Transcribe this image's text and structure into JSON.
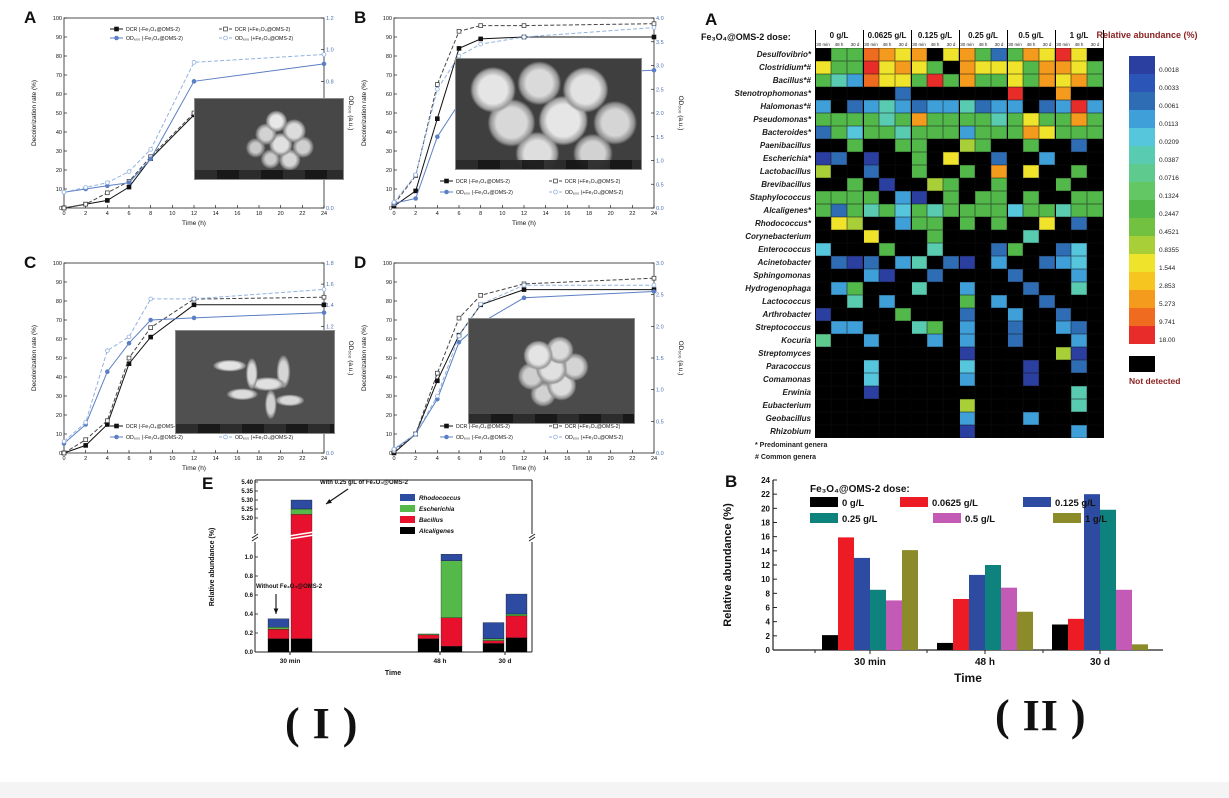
{
  "figure_labels": {
    "left": "( I )",
    "right": "( II )"
  },
  "sem_insets": {
    "a": "SEM micrograph: cluster of small spherical cells",
    "b": "SEM micrograph: large spherical particles",
    "c": "SEM micrograph: rod-shaped cells",
    "d": "SEM micrograph: irregular cell clump"
  },
  "chart_data": [
    {
      "id": "I-A",
      "type": "line",
      "panel_label": "A",
      "xlabel": "Time (h)",
      "x": [
        0,
        2,
        4,
        6,
        8,
        12,
        24
      ],
      "xticks": [
        0,
        2,
        4,
        6,
        8,
        10,
        12,
        14,
        16,
        18,
        20,
        22,
        24
      ],
      "left_axis": {
        "label": "Decolorization rate (%)",
        "min": 0,
        "max": 100,
        "step": 10
      },
      "right_axis": {
        "label": "OD₆₀₀ (a.u.)",
        "min": 0,
        "max": 1.2,
        "step": 0.2,
        "decimals": 1
      },
      "legend_pos": "top",
      "series": [
        {
          "name": "DCR (-Fe₃O₄@OMS-2)",
          "axis": "left",
          "dash": false,
          "marker": "square",
          "open": false,
          "color": "#111111",
          "values": [
            0,
            2,
            4,
            11,
            26,
            49,
            51
          ]
        },
        {
          "name": "DCR (+Fe₃O₄@OMS-2)",
          "axis": "left",
          "dash": true,
          "marker": "square",
          "open": true,
          "color": "#444444",
          "values": [
            0,
            2,
            8,
            14,
            27,
            50,
            52
          ]
        },
        {
          "name": "OD₆₀₀ (-Fe₃O₄@OMS-2)",
          "axis": "right",
          "dash": false,
          "marker": "circle",
          "open": false,
          "color": "#5b7fc4",
          "values": [
            0.1,
            0.12,
            0.14,
            0.16,
            0.31,
            0.8,
            0.91
          ]
        },
        {
          "name": "OD₆₀₀ (+Fe₃O₄@OMS-2)",
          "axis": "right",
          "dash": true,
          "marker": "circle",
          "open": true,
          "color": "#93b2e0",
          "values": [
            0.1,
            0.13,
            0.16,
            0.23,
            0.37,
            0.92,
            0.97
          ]
        }
      ]
    },
    {
      "id": "I-B",
      "type": "line",
      "panel_label": "B",
      "xlabel": "Time (h)",
      "x": [
        0,
        2,
        4,
        6,
        8,
        12,
        24
      ],
      "xticks": [
        0,
        2,
        4,
        6,
        8,
        10,
        12,
        14,
        16,
        18,
        20,
        22,
        24
      ],
      "left_axis": {
        "label": "Decolorization rate (%)",
        "min": 0,
        "max": 100,
        "step": 10
      },
      "right_axis": {
        "label": "OD₆₀₀ (a.u.)",
        "min": 0,
        "max": 4.0,
        "step": 0.5,
        "decimals": 1
      },
      "legend_pos": "bottom",
      "series": [
        {
          "name": "DCR (-Fe₃O₄@OMS-2)",
          "axis": "left",
          "dash": false,
          "marker": "square",
          "open": false,
          "color": "#111111",
          "values": [
            1,
            9,
            47,
            84,
            89,
            90,
            90
          ]
        },
        {
          "name": "DCR (+Fe₃O₄@OMS-2)",
          "axis": "left",
          "dash": true,
          "marker": "square",
          "open": true,
          "color": "#444444",
          "values": [
            2,
            17,
            65,
            93,
            96,
            96,
            97
          ]
        },
        {
          "name": "OD₆₀₀ (-Fe₃O₄@OMS-2)",
          "axis": "right",
          "dash": false,
          "marker": "circle",
          "open": false,
          "color": "#5b7fc4",
          "values": [
            0.1,
            0.2,
            1.5,
            2.2,
            2.7,
            2.8,
            2.9
          ]
        },
        {
          "name": "OD₆₀₀ (+Fe₃O₄@OMS-2)",
          "axis": "right",
          "dash": true,
          "marker": "circle",
          "open": true,
          "color": "#93b2e0",
          "values": [
            0.12,
            0.7,
            2.5,
            3.2,
            3.45,
            3.6,
            3.8
          ]
        }
      ]
    },
    {
      "id": "I-C",
      "type": "line",
      "panel_label": "C",
      "xlabel": "Time (h)",
      "x": [
        0,
        2,
        4,
        6,
        8,
        12,
        24
      ],
      "xticks": [
        0,
        2,
        4,
        6,
        8,
        10,
        12,
        14,
        16,
        18,
        20,
        22,
        24
      ],
      "left_axis": {
        "label": "Decolorization rate (%)",
        "min": 0,
        "max": 100,
        "step": 10
      },
      "right_axis": {
        "label": "OD₆₀₀ (a.u.)",
        "min": 0,
        "max": 1.8,
        "step": 0.2,
        "decimals": 1
      },
      "legend_pos": "bottom",
      "series": [
        {
          "name": "DCR (-Fe₃O₄@OMS-2)",
          "axis": "left",
          "dash": false,
          "marker": "square",
          "open": false,
          "color": "#111111",
          "values": [
            0,
            4,
            15,
            47,
            61,
            78,
            78
          ]
        },
        {
          "name": "DCR (+Fe₃O₄@OMS-2)",
          "axis": "left",
          "dash": true,
          "marker": "square",
          "open": true,
          "color": "#444444",
          "values": [
            0,
            7,
            17,
            50,
            66,
            81,
            82
          ]
        },
        {
          "name": "OD₆₀₀ (-Fe₃O₄@OMS-2)",
          "axis": "right",
          "dash": false,
          "marker": "circle",
          "open": false,
          "color": "#5b7fc4",
          "values": [
            0.09,
            0.27,
            0.77,
            1.04,
            1.26,
            1.28,
            1.33
          ]
        },
        {
          "name": "OD₆₀₀ (+Fe₃O₄@OMS-2)",
          "axis": "right",
          "dash": true,
          "marker": "circle",
          "open": true,
          "color": "#93b2e0",
          "values": [
            0.11,
            0.29,
            0.97,
            1.1,
            1.46,
            1.46,
            1.55
          ]
        }
      ]
    },
    {
      "id": "I-D",
      "type": "line",
      "panel_label": "D",
      "xlabel": "Time (h)",
      "x": [
        0,
        2,
        4,
        6,
        8,
        12,
        24
      ],
      "xticks": [
        0,
        2,
        4,
        6,
        8,
        10,
        12,
        14,
        16,
        18,
        20,
        22,
        24
      ],
      "left_axis": {
        "label": "Decolorization rate (%)",
        "min": 0,
        "max": 100,
        "step": 10
      },
      "right_axis": {
        "label": "OD₆₀₀ (a.u.)",
        "min": 0,
        "max": 3.0,
        "step": 0.5,
        "decimals": 1
      },
      "legend_pos": "bottom",
      "series": [
        {
          "name": "DCR (-Fe₃O₄@OMS-2)",
          "axis": "left",
          "dash": false,
          "marker": "square",
          "open": false,
          "color": "#111111",
          "values": [
            0,
            10,
            38,
            62,
            78,
            86,
            86
          ]
        },
        {
          "name": "DCR (+Fe₃O₄@OMS-2)",
          "axis": "left",
          "dash": true,
          "marker": "square",
          "open": true,
          "color": "#444444",
          "values": [
            1,
            10,
            42,
            71,
            83,
            89,
            92
          ]
        },
        {
          "name": "OD₆₀₀ (-Fe₃O₄@OMS-2)",
          "axis": "right",
          "dash": false,
          "marker": "circle",
          "open": false,
          "color": "#5b7fc4",
          "values": [
            0.06,
            0.3,
            0.85,
            1.75,
            2.05,
            2.45,
            2.55
          ]
        },
        {
          "name": "OD₆₀₀ (+Fe₃O₄@OMS-2)",
          "axis": "right",
          "dash": true,
          "marker": "circle",
          "open": true,
          "color": "#93b2e0",
          "values": [
            0.06,
            0.3,
            0.9,
            1.85,
            2.35,
            2.65,
            2.65
          ]
        }
      ]
    },
    {
      "id": "I-E",
      "type": "stacked-bar-broken-axis",
      "panel_label": "E",
      "ylabel": "Relative abundance (%)",
      "xlabel": "Time",
      "lower_ticks": [
        0.0,
        0.2,
        0.4,
        0.6,
        0.8,
        1.0
      ],
      "upper_ticks": [
        5.2,
        5.25,
        5.3,
        5.35,
        5.4
      ],
      "categories": [
        "30 min",
        "48 h",
        "30 d"
      ],
      "legend": [
        {
          "name": "Rhodococcus",
          "color": "#2d4ba0"
        },
        {
          "name": "Escherichia",
          "color": "#54b948"
        },
        {
          "name": "Bacillus",
          "color": "#e8112d"
        },
        {
          "name": "Alcaligenes",
          "color": "#000000"
        }
      ],
      "stack_order": [
        "Alcaligenes",
        "Bacillus",
        "Escherichia",
        "Rhodococcus"
      ],
      "stack_colors": [
        "#000000",
        "#e8112d",
        "#54b948",
        "#2d4ba0"
      ],
      "bars": [
        {
          "group": "30 min",
          "variant": "without",
          "segments": [
            0.14,
            0.1,
            0.02,
            0.09
          ]
        },
        {
          "group": "30 min",
          "variant": "with",
          "segments": [
            0.14,
            5.08,
            0.03,
            0.05
          ],
          "crosses_break": true
        },
        {
          "group": "48 h",
          "variant": "without",
          "segments": [
            0.14,
            0.04,
            0.01,
            0.0
          ]
        },
        {
          "group": "48 h",
          "variant": "with",
          "segments": [
            0.06,
            0.3,
            0.6,
            0.07
          ]
        },
        {
          "group": "30 d",
          "variant": "without",
          "segments": [
            0.09,
            0.03,
            0.02,
            0.17
          ]
        },
        {
          "group": "30 d",
          "variant": "with",
          "segments": [
            0.15,
            0.23,
            0.02,
            0.21
          ]
        }
      ],
      "annotations": {
        "with": "With 0.25 g/L of Fe₃O₄@OMS-2",
        "without": "Without Fe₃O₄@OMS-2"
      }
    },
    {
      "id": "II-A",
      "type": "heatmap",
      "panel_label": "A",
      "header": "Fe₃O₄@OMS-2 dose:",
      "dose_labels": [
        "0 g/L",
        "0.0625 g/L",
        "0.125 g/L",
        "0.25 g/L",
        "0.5 g/L",
        "1 g/L"
      ],
      "time_sublabels": [
        "30 min",
        "48 h",
        "30 d"
      ],
      "rows": [
        "Desulfovibrio*",
        "Clostridium*#",
        "Bacillus*#",
        "Stenotrophomonas*",
        "Halomonas*#",
        "Pseudomonas*",
        "Bacteroides*",
        "Paenibacillus",
        "Escherichia*",
        "Lactobacillus",
        "Brevibacillus",
        "Staphylococcus",
        "Alcaligenes*",
        "Rhodococcus*",
        "Corynebacterium",
        "Enterococcus",
        "Acinetobacter",
        "Sphingomonas",
        "Hydrogenophaga",
        "Lactococcus",
        "Arthrobacter",
        "Streptococcus",
        "Kocuria",
        "Streptomyces",
        "Paracoccus",
        "Comamonas",
        "Erwinia",
        "Eubacterium",
        "Geobacillus",
        "Rhizobium"
      ],
      "palette": {
        "K": "#000000",
        "B": "#2a3f9f",
        "b": "#2e6db4",
        "c": "#3f9fd8",
        "C": "#55c6dc",
        "t": "#58cbb0",
        "T": "#5fca8d",
        "G": "#63c863",
        "g": "#53b84a",
        "l": "#a9cf38",
        "y": "#efe32b",
        "Y": "#f6c51f",
        "o": "#f49b1d",
        "O": "#ee6b20",
        "r": "#e82c2a"
      },
      "grid": [
        "KggOoyoKyogbgoyryK",
        "yggryoygKoyyygooyg",
        "gtcOyygrgoggygoyog",
        "KKKKKbKKKKKKrKKoKK",
        "cKbctcbcctbccKbcrc",
        "ggggtgoggggtgyggog",
        "bgCggtgggcgggoyggg",
        "KKgKKggKKlgKKgKKbK",
        "BbKBKKgKyKKbKKcKKK",
        "lKKbKKgKKgKoKyKKgK",
        "KKgKBKKlgKKgKKKgKK",
        "ggggKcBKgKggKgKKgg",
        "gbgtgCgtggggCggtgg",
        "KylKKcggKgKgKKyKbK",
        "KKKyKKKgKKKKKtKKKK",
        "CKKKgKKtKKKbgKKbCK",
        "KbBbKctKbBKcKKbcCK",
        "KKKcBKKbKKKKbKKKcK",
        "KcgKKKtKKcKKKbKKtK",
        "KKtKcKKKKgKcKKbKKK",
        "BKKKKgKKKbKKcKKbKK",
        "KccKKKtgKcKKbKKcbK",
        "TKKcKKKcKcKKbKKKcK",
        "KKKKKKKKKBKKKKKlBK",
        "KKKCKKKKKCKKKBKKbK",
        "KKKCKKKKKcKKKBKKKK",
        "KKKBKKKKKKKKKKKKtK",
        "KKKKKKKKKlKKKKKKtK",
        "KKKKKKKKKcKKKcKKKK",
        "KKKKKKKKKBKKKKKKcK"
      ],
      "colorbar": {
        "title": "Relative abundance (%)",
        "values": [
          "0.0018",
          "0.0033",
          "0.0061",
          "0.0113",
          "0.0209",
          "0.0387",
          "0.0716",
          "0.1324",
          "0.2447",
          "0.4521",
          "0.8355",
          "1.544",
          "2.853",
          "5.273",
          "9.741",
          "18.00"
        ],
        "colors": [
          "#2a3f9f",
          "#2b55b7",
          "#2e6db4",
          "#3f9fd8",
          "#55c6dc",
          "#58cbb0",
          "#5fca8d",
          "#63c863",
          "#53b84a",
          "#72c141",
          "#a9cf38",
          "#efe32b",
          "#f6c51f",
          "#f49b1d",
          "#ee6b20",
          "#e82c2a"
        ],
        "not_detected_label": "Not detected"
      },
      "footnotes": [
        "* Predominant genera",
        "# Common genera"
      ]
    },
    {
      "id": "II-B",
      "type": "bar",
      "panel_label": "B",
      "legend_title": "Fe₃O₄@OMS-2 dose:",
      "categories": [
        "30 min",
        "48 h",
        "30 d"
      ],
      "xlabel": "Time",
      "ylabel": "Relative abundance (%)",
      "ylim": [
        0,
        24
      ],
      "ystep": 2,
      "series": [
        {
          "name": "0 g/L",
          "color": "#000000",
          "values": [
            2.1,
            1.0,
            3.6
          ]
        },
        {
          "name": "0.0625 g/L",
          "color": "#ed1c24",
          "values": [
            15.9,
            7.2,
            4.4
          ]
        },
        {
          "name": "0.125 g/L",
          "color": "#2d4ba0",
          "values": [
            13.0,
            10.6,
            22.0
          ]
        },
        {
          "name": "0.25 g/L",
          "color": "#0e837d",
          "values": [
            8.5,
            12.0,
            19.8
          ]
        },
        {
          "name": "0.5 g/L",
          "color": "#c35ab5",
          "values": [
            7.0,
            8.8,
            8.5
          ]
        },
        {
          "name": "1 g/L",
          "color": "#8b8b2a",
          "values": [
            14.1,
            5.4,
            0.8
          ]
        }
      ]
    }
  ]
}
